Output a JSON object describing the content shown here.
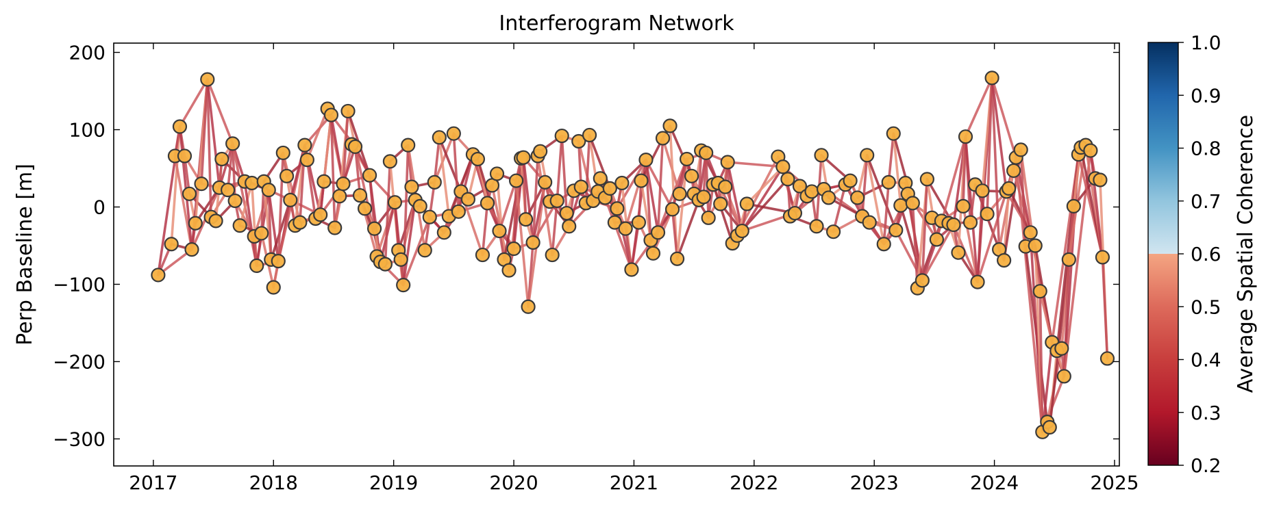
{
  "chart_data": {
    "type": "scatter",
    "title": "Interferogram Network",
    "xlabel": "",
    "ylabel": "Perp Baseline [m]",
    "xlim": [
      2016.67,
      2025.04
    ],
    "ylim": [
      -335,
      212
    ],
    "xticks": [
      2017,
      2018,
      2019,
      2020,
      2021,
      2022,
      2023,
      2024,
      2025
    ],
    "yticks": [
      200,
      100,
      0,
      -100,
      -200,
      -300
    ],
    "ytick_labels": [
      "200",
      "100",
      "0",
      "−100",
      "−200",
      "−300"
    ],
    "grid": false,
    "colorbar": {
      "label": "Average Spatial Coherence",
      "min": 0.2,
      "max": 1.0,
      "ticks": [
        0.2,
        0.3,
        0.4,
        0.5,
        0.6,
        0.7,
        0.8,
        0.9,
        1.0
      ],
      "tick_labels": [
        "0.2",
        "0.3",
        "0.4",
        "0.5",
        "0.6",
        "0.7",
        "0.8",
        "0.9",
        "1.0"
      ],
      "masked_above": 0.7
    },
    "marker_color": "#f5b041",
    "marker_edge": "#3a3a3a",
    "acquisitions": [
      {
        "t": 2017.04,
        "bp": -88
      },
      {
        "t": 2017.15,
        "bp": -48
      },
      {
        "t": 2017.18,
        "bp": 66
      },
      {
        "t": 2017.22,
        "bp": 104
      },
      {
        "t": 2017.26,
        "bp": 66
      },
      {
        "t": 2017.3,
        "bp": 17
      },
      {
        "t": 2017.32,
        "bp": -55
      },
      {
        "t": 2017.35,
        "bp": -21
      },
      {
        "t": 2017.4,
        "bp": 30
      },
      {
        "t": 2017.45,
        "bp": 165
      },
      {
        "t": 2017.48,
        "bp": -13
      },
      {
        "t": 2017.52,
        "bp": -18
      },
      {
        "t": 2017.55,
        "bp": 25
      },
      {
        "t": 2017.57,
        "bp": 62
      },
      {
        "t": 2017.62,
        "bp": 22
      },
      {
        "t": 2017.66,
        "bp": 82
      },
      {
        "t": 2017.68,
        "bp": 8
      },
      {
        "t": 2017.72,
        "bp": -24
      },
      {
        "t": 2017.76,
        "bp": 33
      },
      {
        "t": 2017.82,
        "bp": 31
      },
      {
        "t": 2017.84,
        "bp": -38
      },
      {
        "t": 2017.86,
        "bp": -76
      },
      {
        "t": 2017.9,
        "bp": -34
      },
      {
        "t": 2017.92,
        "bp": 33
      },
      {
        "t": 2017.96,
        "bp": 22
      },
      {
        "t": 2017.98,
        "bp": -68
      },
      {
        "t": 2018.0,
        "bp": -104
      },
      {
        "t": 2018.04,
        "bp": -70
      },
      {
        "t": 2018.08,
        "bp": 70
      },
      {
        "t": 2018.11,
        "bp": 40
      },
      {
        "t": 2018.14,
        "bp": 9
      },
      {
        "t": 2018.18,
        "bp": -24
      },
      {
        "t": 2018.22,
        "bp": -20
      },
      {
        "t": 2018.26,
        "bp": 80
      },
      {
        "t": 2018.28,
        "bp": 61
      },
      {
        "t": 2018.35,
        "bp": -15
      },
      {
        "t": 2018.39,
        "bp": -10
      },
      {
        "t": 2018.42,
        "bp": 33
      },
      {
        "t": 2018.45,
        "bp": 127
      },
      {
        "t": 2018.48,
        "bp": 119
      },
      {
        "t": 2018.51,
        "bp": -27
      },
      {
        "t": 2018.55,
        "bp": 14
      },
      {
        "t": 2018.58,
        "bp": 30
      },
      {
        "t": 2018.62,
        "bp": 124
      },
      {
        "t": 2018.65,
        "bp": 81
      },
      {
        "t": 2018.68,
        "bp": 78
      },
      {
        "t": 2018.72,
        "bp": 15
      },
      {
        "t": 2018.76,
        "bp": -2
      },
      {
        "t": 2018.8,
        "bp": 41
      },
      {
        "t": 2018.84,
        "bp": -28
      },
      {
        "t": 2018.86,
        "bp": -64
      },
      {
        "t": 2018.89,
        "bp": -71
      },
      {
        "t": 2018.93,
        "bp": -74
      },
      {
        "t": 2018.97,
        "bp": 59
      },
      {
        "t": 2019.01,
        "bp": 6
      },
      {
        "t": 2019.04,
        "bp": -56
      },
      {
        "t": 2019.06,
        "bp": -68
      },
      {
        "t": 2019.08,
        "bp": -101
      },
      {
        "t": 2019.12,
        "bp": 80
      },
      {
        "t": 2019.15,
        "bp": 26
      },
      {
        "t": 2019.18,
        "bp": 9
      },
      {
        "t": 2019.22,
        "bp": 1
      },
      {
        "t": 2019.26,
        "bp": -56
      },
      {
        "t": 2019.3,
        "bp": -13
      },
      {
        "t": 2019.34,
        "bp": 32
      },
      {
        "t": 2019.38,
        "bp": 90
      },
      {
        "t": 2019.42,
        "bp": -33
      },
      {
        "t": 2019.46,
        "bp": -12
      },
      {
        "t": 2019.5,
        "bp": 95
      },
      {
        "t": 2019.54,
        "bp": -6
      },
      {
        "t": 2019.56,
        "bp": 20
      },
      {
        "t": 2019.62,
        "bp": 10
      },
      {
        "t": 2019.66,
        "bp": 68
      },
      {
        "t": 2019.7,
        "bp": 62
      },
      {
        "t": 2019.74,
        "bp": -62
      },
      {
        "t": 2019.78,
        "bp": 5
      },
      {
        "t": 2019.82,
        "bp": 28
      },
      {
        "t": 2019.86,
        "bp": 43
      },
      {
        "t": 2019.88,
        "bp": -31
      },
      {
        "t": 2019.92,
        "bp": -68
      },
      {
        "t": 2019.96,
        "bp": -82
      },
      {
        "t": 2020.0,
        "bp": -54
      },
      {
        "t": 2020.02,
        "bp": 34
      },
      {
        "t": 2020.06,
        "bp": 63
      },
      {
        "t": 2020.08,
        "bp": 64
      },
      {
        "t": 2020.1,
        "bp": -16
      },
      {
        "t": 2020.12,
        "bp": -129
      },
      {
        "t": 2020.16,
        "bp": -46
      },
      {
        "t": 2020.2,
        "bp": 66
      },
      {
        "t": 2020.22,
        "bp": 72
      },
      {
        "t": 2020.26,
        "bp": 32
      },
      {
        "t": 2020.3,
        "bp": 7
      },
      {
        "t": 2020.32,
        "bp": -62
      },
      {
        "t": 2020.36,
        "bp": 8
      },
      {
        "t": 2020.4,
        "bp": 92
      },
      {
        "t": 2020.44,
        "bp": -8
      },
      {
        "t": 2020.46,
        "bp": -25
      },
      {
        "t": 2020.5,
        "bp": 21
      },
      {
        "t": 2020.54,
        "bp": 85
      },
      {
        "t": 2020.56,
        "bp": 26
      },
      {
        "t": 2020.6,
        "bp": 5
      },
      {
        "t": 2020.63,
        "bp": 93
      },
      {
        "t": 2020.66,
        "bp": 8
      },
      {
        "t": 2020.7,
        "bp": 20
      },
      {
        "t": 2020.72,
        "bp": 37
      },
      {
        "t": 2020.76,
        "bp": 12
      },
      {
        "t": 2020.8,
        "bp": 24
      },
      {
        "t": 2020.84,
        "bp": -20
      },
      {
        "t": 2020.86,
        "bp": -2
      },
      {
        "t": 2020.9,
        "bp": 31
      },
      {
        "t": 2020.93,
        "bp": -28
      },
      {
        "t": 2020.98,
        "bp": -81
      },
      {
        "t": 2021.04,
        "bp": -20
      },
      {
        "t": 2021.06,
        "bp": 34
      },
      {
        "t": 2021.1,
        "bp": 61
      },
      {
        "t": 2021.14,
        "bp": -43
      },
      {
        "t": 2021.16,
        "bp": -60
      },
      {
        "t": 2021.2,
        "bp": -33
      },
      {
        "t": 2021.24,
        "bp": 89
      },
      {
        "t": 2021.3,
        "bp": 105
      },
      {
        "t": 2021.32,
        "bp": -3
      },
      {
        "t": 2021.36,
        "bp": -67
      },
      {
        "t": 2021.38,
        "bp": 17
      },
      {
        "t": 2021.44,
        "bp": 62
      },
      {
        "t": 2021.48,
        "bp": 40
      },
      {
        "t": 2021.5,
        "bp": 17
      },
      {
        "t": 2021.54,
        "bp": 9
      },
      {
        "t": 2021.56,
        "bp": 73
      },
      {
        "t": 2021.58,
        "bp": 13
      },
      {
        "t": 2021.6,
        "bp": 70
      },
      {
        "t": 2021.62,
        "bp": -14
      },
      {
        "t": 2021.66,
        "bp": 29
      },
      {
        "t": 2021.7,
        "bp": 31
      },
      {
        "t": 2021.72,
        "bp": 4
      },
      {
        "t": 2021.76,
        "bp": 26
      },
      {
        "t": 2021.78,
        "bp": 58
      },
      {
        "t": 2021.82,
        "bp": -47
      },
      {
        "t": 2021.86,
        "bp": -37
      },
      {
        "t": 2021.9,
        "bp": -31
      },
      {
        "t": 2021.94,
        "bp": 4
      },
      {
        "t": 2022.2,
        "bp": 65
      },
      {
        "t": 2022.24,
        "bp": 52
      },
      {
        "t": 2022.28,
        "bp": 36
      },
      {
        "t": 2022.3,
        "bp": -12
      },
      {
        "t": 2022.34,
        "bp": -8
      },
      {
        "t": 2022.38,
        "bp": 27
      },
      {
        "t": 2022.44,
        "bp": 14
      },
      {
        "t": 2022.48,
        "bp": 20
      },
      {
        "t": 2022.52,
        "bp": -25
      },
      {
        "t": 2022.56,
        "bp": 67
      },
      {
        "t": 2022.58,
        "bp": 23
      },
      {
        "t": 2022.62,
        "bp": 12
      },
      {
        "t": 2022.66,
        "bp": -32
      },
      {
        "t": 2022.76,
        "bp": 29
      },
      {
        "t": 2022.8,
        "bp": 34
      },
      {
        "t": 2022.86,
        "bp": 12
      },
      {
        "t": 2022.9,
        "bp": -12
      },
      {
        "t": 2022.94,
        "bp": 67
      },
      {
        "t": 2022.96,
        "bp": -20
      },
      {
        "t": 2023.08,
        "bp": -48
      },
      {
        "t": 2023.12,
        "bp": 32
      },
      {
        "t": 2023.16,
        "bp": 95
      },
      {
        "t": 2023.18,
        "bp": -30
      },
      {
        "t": 2023.22,
        "bp": 2
      },
      {
        "t": 2023.26,
        "bp": 31
      },
      {
        "t": 2023.28,
        "bp": 17
      },
      {
        "t": 2023.32,
        "bp": 5
      },
      {
        "t": 2023.36,
        "bp": -105
      },
      {
        "t": 2023.4,
        "bp": -95
      },
      {
        "t": 2023.44,
        "bp": 36
      },
      {
        "t": 2023.48,
        "bp": -14
      },
      {
        "t": 2023.52,
        "bp": -42
      },
      {
        "t": 2023.56,
        "bp": -18
      },
      {
        "t": 2023.62,
        "bp": -21
      },
      {
        "t": 2023.66,
        "bp": -23
      },
      {
        "t": 2023.7,
        "bp": -59
      },
      {
        "t": 2023.74,
        "bp": 1
      },
      {
        "t": 2023.76,
        "bp": 91
      },
      {
        "t": 2023.8,
        "bp": -20
      },
      {
        "t": 2023.84,
        "bp": 29
      },
      {
        "t": 2023.86,
        "bp": -97
      },
      {
        "t": 2023.9,
        "bp": 21
      },
      {
        "t": 2023.94,
        "bp": -9
      },
      {
        "t": 2023.98,
        "bp": 167
      },
      {
        "t": 2024.04,
        "bp": -55
      },
      {
        "t": 2024.08,
        "bp": -69
      },
      {
        "t": 2024.1,
        "bp": 20
      },
      {
        "t": 2024.12,
        "bp": 24
      },
      {
        "t": 2024.16,
        "bp": 47
      },
      {
        "t": 2024.18,
        "bp": 64
      },
      {
        "t": 2024.22,
        "bp": 74
      },
      {
        "t": 2024.26,
        "bp": -51
      },
      {
        "t": 2024.3,
        "bp": -33
      },
      {
        "t": 2024.34,
        "bp": -50
      },
      {
        "t": 2024.38,
        "bp": -109
      },
      {
        "t": 2024.4,
        "bp": -291
      },
      {
        "t": 2024.44,
        "bp": -278
      },
      {
        "t": 2024.46,
        "bp": -285
      },
      {
        "t": 2024.48,
        "bp": -175
      },
      {
        "t": 2024.52,
        "bp": -186
      },
      {
        "t": 2024.56,
        "bp": -183
      },
      {
        "t": 2024.58,
        "bp": -219
      },
      {
        "t": 2024.62,
        "bp": -68
      },
      {
        "t": 2024.66,
        "bp": 1
      },
      {
        "t": 2024.7,
        "bp": 68
      },
      {
        "t": 2024.72,
        "bp": 77
      },
      {
        "t": 2024.76,
        "bp": 80
      },
      {
        "t": 2024.8,
        "bp": 73
      },
      {
        "t": 2024.84,
        "bp": 37
      },
      {
        "t": 2024.88,
        "bp": 35
      },
      {
        "t": 2024.9,
        "bp": -65
      },
      {
        "t": 2024.94,
        "bp": -196
      }
    ]
  }
}
